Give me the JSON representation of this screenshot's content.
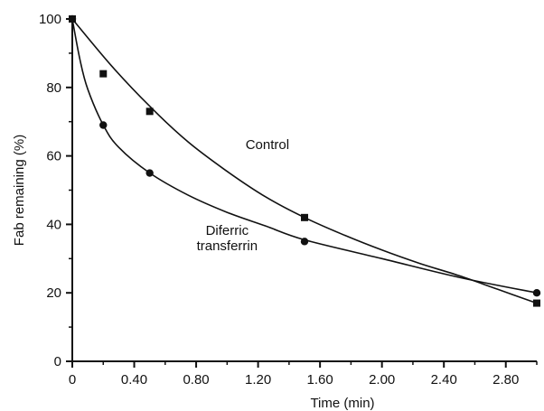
{
  "chart_data": {
    "type": "scatter",
    "xlabel": "Time (min)",
    "ylabel": "Fab remaining (%)",
    "xlim": [
      0,
      3.0
    ],
    "ylim": [
      0,
      100
    ],
    "xticks": [
      0,
      0.4,
      0.8,
      1.2,
      1.6,
      2.0,
      2.4,
      2.8
    ],
    "xtick_labels": [
      "0",
      "0.40",
      "0.80",
      "1.20",
      "1.60",
      "2.00",
      "2.40",
      "2.80"
    ],
    "yticks": [
      0,
      20,
      40,
      60,
      80,
      100
    ],
    "ytick_labels": [
      "0",
      "20",
      "40",
      "60",
      "80",
      "100"
    ],
    "grid": false,
    "legend": "none",
    "series": [
      {
        "name": "Control",
        "marker": "square",
        "x": [
          0,
          0.2,
          0.5,
          1.5,
          3.0
        ],
        "y": [
          100,
          84,
          73,
          42,
          17
        ],
        "fit_curve": [
          [
            0,
            100
          ],
          [
            0.25,
            86.5
          ],
          [
            0.5,
            74.5
          ],
          [
            0.75,
            64
          ],
          [
            1.0,
            55.5
          ],
          [
            1.25,
            48
          ],
          [
            1.5,
            42
          ],
          [
            1.75,
            37
          ],
          [
            2.0,
            32.5
          ],
          [
            2.25,
            28.5
          ],
          [
            2.5,
            25
          ],
          [
            2.75,
            21
          ],
          [
            3.0,
            17
          ]
        ]
      },
      {
        "name": "Diferric transferrin",
        "marker": "circle",
        "x": [
          0,
          0.2,
          0.5,
          1.5,
          3.0
        ],
        "y": [
          100,
          69,
          55,
          35,
          20
        ],
        "fit_curve": [
          [
            0,
            100
          ],
          [
            0.05,
            88
          ],
          [
            0.1,
            79.5
          ],
          [
            0.2,
            69
          ],
          [
            0.3,
            62.5
          ],
          [
            0.5,
            55
          ],
          [
            0.75,
            48.5
          ],
          [
            1.0,
            43.5
          ],
          [
            1.25,
            39.5
          ],
          [
            1.5,
            35.5
          ],
          [
            2.0,
            30
          ],
          [
            2.5,
            24.5
          ],
          [
            3.0,
            20
          ]
        ]
      }
    ],
    "annotations": [
      {
        "lines": [
          "Control"
        ],
        "x": 1.26,
        "y": 62
      },
      {
        "lines": [
          "Diferric",
          "transferrin"
        ],
        "x": 1.0,
        "y": 37
      }
    ]
  }
}
